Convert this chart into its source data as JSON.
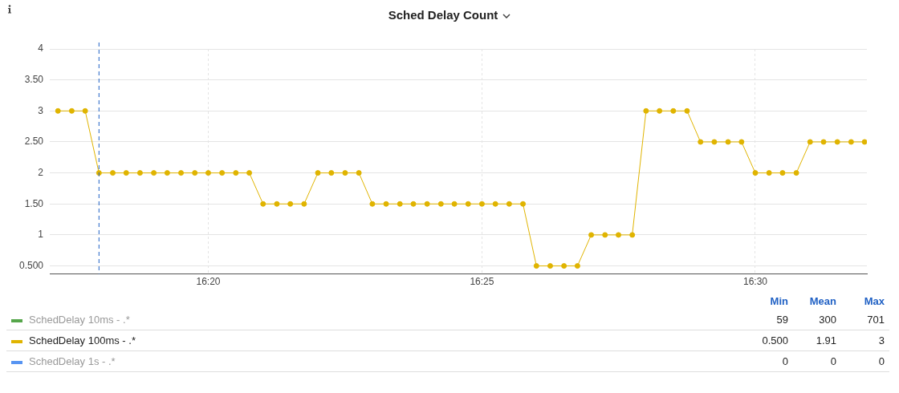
{
  "chart_data": {
    "type": "line",
    "title": "Sched Delay Count",
    "x": [
      16.2875,
      16.2917,
      16.2958,
      16.3,
      16.3042,
      16.3083,
      16.3125,
      16.3167,
      16.3208,
      16.325,
      16.3292,
      16.3333,
      16.3375,
      16.3417,
      16.3458,
      16.35,
      16.3542,
      16.3583,
      16.3625,
      16.3667,
      16.3708,
      16.375,
      16.3792,
      16.3833,
      16.3875,
      16.3917,
      16.3958,
      16.4,
      16.4042,
      16.4083,
      16.4125,
      16.4167,
      16.4208,
      16.425,
      16.4292,
      16.4333,
      16.4375,
      16.4417,
      16.4458,
      16.45,
      16.4542,
      16.4583,
      16.4625,
      16.4667,
      16.4708,
      16.475,
      16.4792,
      16.4833,
      16.4875,
      16.4917,
      16.4958,
      16.5,
      16.5042,
      16.5083,
      16.5125,
      16.5167,
      16.5208,
      16.525,
      16.5292,
      16.5333
    ],
    "series": [
      {
        "name": "SchedDelay 10ms - .*",
        "color": "#56a64b",
        "values": [
          null,
          null,
          null,
          null,
          null,
          null,
          null,
          null,
          null,
          null,
          null,
          null,
          null,
          null,
          null,
          null,
          null,
          null,
          null,
          null,
          null,
          null,
          null,
          null,
          null,
          null,
          null,
          null,
          null,
          null,
          null,
          null,
          null,
          null,
          null,
          null,
          null,
          null,
          null,
          null,
          null,
          null,
          null,
          null,
          null,
          null,
          null,
          null,
          null,
          null,
          null,
          null,
          null,
          null,
          null,
          null,
          null,
          null,
          null,
          null
        ]
      },
      {
        "name": "SchedDelay 100ms - .*",
        "color": "#e0b400",
        "values": [
          3,
          3,
          3,
          2,
          2,
          2,
          2,
          2,
          2,
          2,
          2,
          2,
          2,
          2,
          2,
          1.5,
          1.5,
          1.5,
          1.5,
          2,
          2,
          2,
          2,
          1.5,
          1.5,
          1.5,
          1.5,
          1.5,
          1.5,
          1.5,
          1.5,
          1.5,
          1.5,
          1.5,
          1.5,
          0.5,
          0.5,
          0.5,
          0.5,
          1,
          1,
          1,
          1,
          3,
          3,
          3,
          3,
          2.5,
          2.5,
          2.5,
          2.5,
          2,
          2,
          2,
          2,
          2.5,
          2.5,
          2.5,
          2.5,
          2.5
        ]
      },
      {
        "name": "SchedDelay 1s - .*",
        "color": "#5794f2",
        "values": [
          null,
          null,
          null,
          null,
          null,
          null,
          null,
          null,
          null,
          null,
          null,
          null,
          null,
          null,
          null,
          null,
          null,
          null,
          null,
          null,
          null,
          null,
          null,
          null,
          null,
          null,
          null,
          null,
          null,
          null,
          null,
          null,
          null,
          null,
          null,
          null,
          null,
          null,
          null,
          null,
          null,
          null,
          null,
          null,
          null,
          null,
          null,
          null,
          null,
          null,
          null,
          null,
          null,
          null,
          null,
          null,
          null,
          null,
          null,
          null
        ]
      }
    ],
    "xlim": [
      16.285,
      16.534
    ],
    "xticks": [
      {
        "value": 16.3333,
        "label": "16:20"
      },
      {
        "value": 16.4167,
        "label": "16:25"
      },
      {
        "value": 16.5,
        "label": "16:30"
      }
    ],
    "ylim": [
      0.37,
      4
    ],
    "yticks": [
      {
        "value": 0.5,
        "label": "0.500"
      },
      1,
      {
        "value": 1.5,
        "label": "1.50"
      },
      2,
      {
        "value": 2.5,
        "label": "2.50"
      },
      3,
      {
        "value": 3.5,
        "label": "3.50"
      },
      4
    ],
    "ref_lines": [
      {
        "axis": "x",
        "value": 16.3,
        "color": "#1f60c4",
        "line_style": "dashed"
      }
    ],
    "annotations": [
      "Min",
      "Mean",
      "Max",
      "59",
      "300",
      "701",
      "0.500",
      "1.91",
      "3",
      "0",
      "0",
      "0"
    ],
    "grid": true,
    "legend": "bottom",
    "marker": "circle",
    "line_style": "solid"
  }
}
